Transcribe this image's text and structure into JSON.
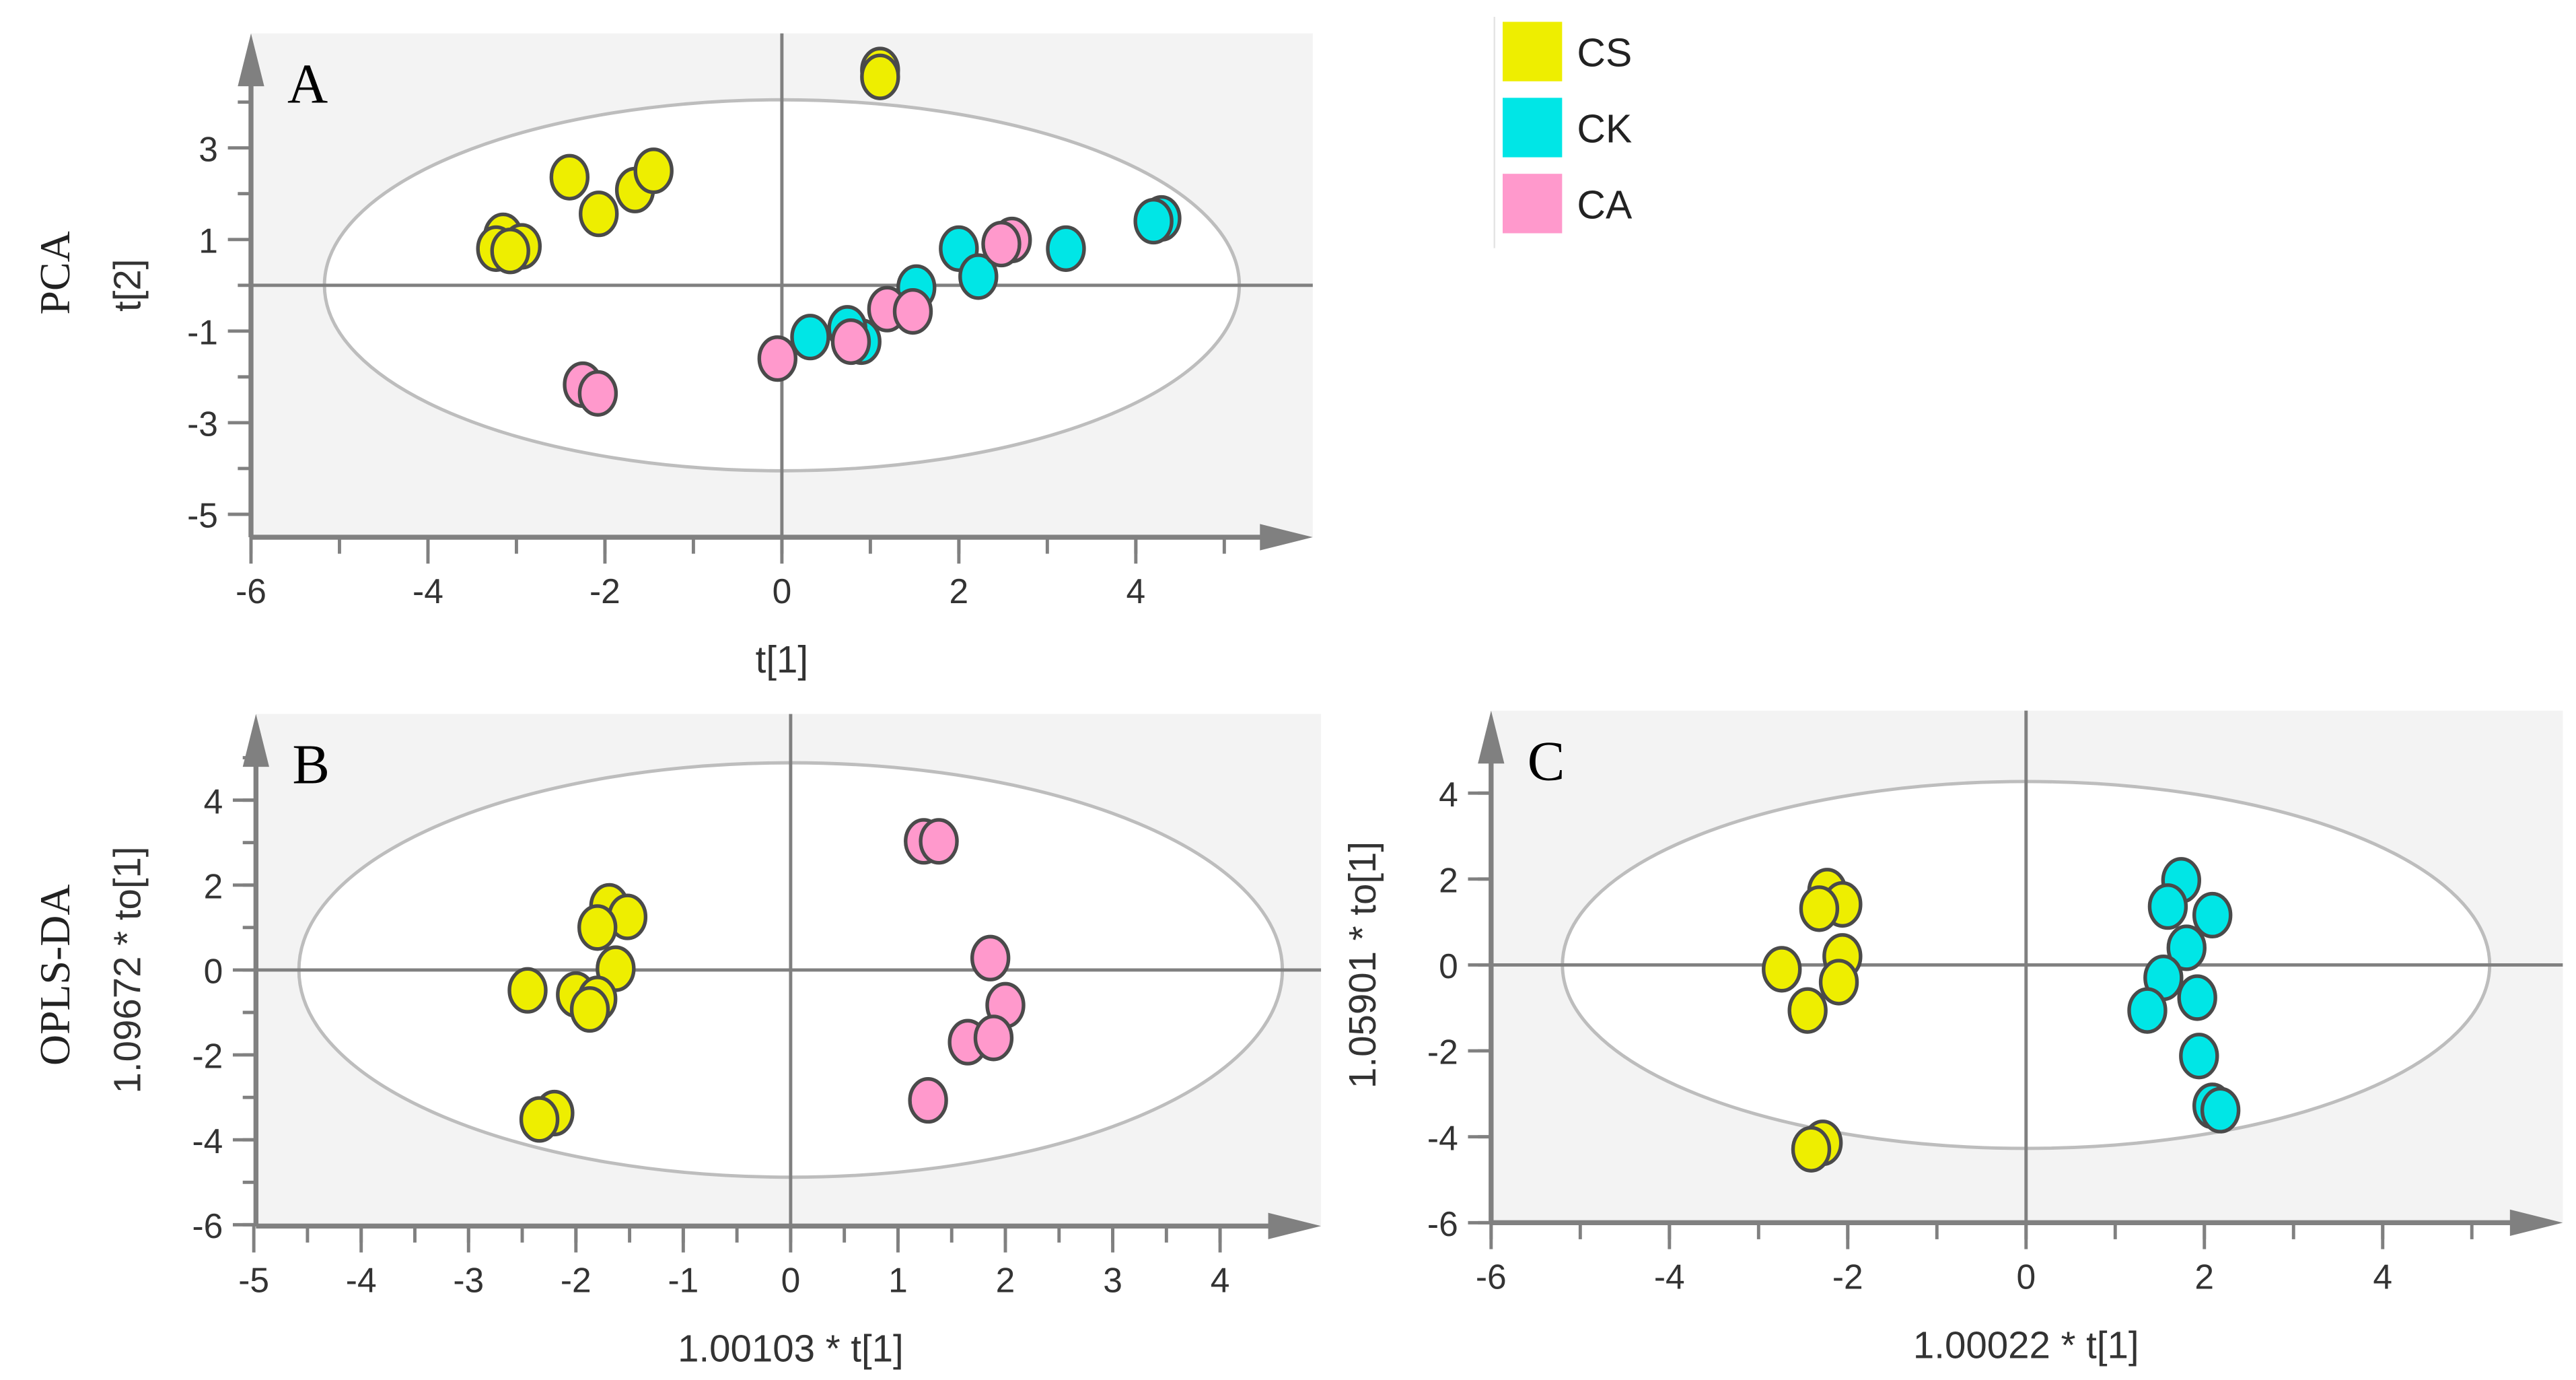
{
  "legend": [
    {
      "name": "CS",
      "color": "#eeee00"
    },
    {
      "name": "CK",
      "color": "#00e6e6"
    },
    {
      "name": "CA",
      "color": "#ff99cc"
    }
  ],
  "row_labels": {
    "pca": "PCA",
    "oplsda": "OPLS-DA"
  },
  "chart_data": [
    {
      "type": "scatter",
      "title": "A",
      "xlabel": "t[1]",
      "ylabel": "t[2]",
      "xlim": [
        -6,
        6
      ],
      "ylim": [
        -5.5,
        5.5
      ],
      "xticks": [
        "-6",
        "-4",
        "-2",
        "0",
        "2",
        "4"
      ],
      "yticks": [
        "3",
        "1",
        "-1",
        "-3",
        "-5"
      ],
      "xminor_step": 1,
      "yminor_step": 2,
      "ellipse": {
        "rx": 5.17,
        "ry": 4.05
      },
      "series": [
        {
          "name": "CS",
          "color": "#eeee00",
          "points": [
            [
              1.11,
              4.7
            ],
            [
              1.11,
              4.55
            ],
            [
              -2.4,
              2.36
            ],
            [
              -2.07,
              1.56
            ],
            [
              -1.66,
              2.08
            ],
            [
              -1.45,
              2.5
            ],
            [
              -3.15,
              1.08
            ],
            [
              -3.23,
              0.8
            ],
            [
              -2.94,
              0.85
            ],
            [
              -3.07,
              0.75
            ]
          ]
        },
        {
          "name": "CK",
          "color": "#00e6e6",
          "points": [
            [
              4.29,
              1.46
            ],
            [
              4.2,
              1.4
            ],
            [
              3.21,
              0.8
            ],
            [
              2.0,
              0.8
            ],
            [
              2.22,
              0.19
            ],
            [
              1.52,
              -0.05
            ],
            [
              0.32,
              -1.13
            ],
            [
              0.9,
              -1.23
            ],
            [
              0.74,
              -0.94
            ]
          ]
        },
        {
          "name": "CA",
          "color": "#ff99cc",
          "points": [
            [
              2.6,
              0.99
            ],
            [
              2.48,
              0.9
            ],
            [
              1.19,
              -0.52
            ],
            [
              1.48,
              -0.57
            ],
            [
              0.78,
              -1.23
            ],
            [
              -0.05,
              -1.6
            ],
            [
              -2.25,
              -2.17
            ],
            [
              -2.08,
              -2.36
            ]
          ]
        }
      ]
    },
    {
      "type": "scatter",
      "title": "B",
      "xlabel": "1.00103 * t[1]",
      "ylabel": "1.09672 * to[1]",
      "xlim": [
        -4.98,
        4.94
      ],
      "ylim": [
        -6.03,
        6.03
      ],
      "xticks": [
        "-5",
        "-4",
        "-3",
        "-2",
        "-1",
        "0",
        "1",
        "2",
        "3",
        "4"
      ],
      "yticks": [
        "4",
        "2",
        "0",
        "-2",
        "-4",
        "-6"
      ],
      "xminor_step": 0.5,
      "yminor_step": 1,
      "ellipse": {
        "rx": 4.58,
        "ry": 4.88
      },
      "series": [
        {
          "name": "CS",
          "color": "#eeee00",
          "points": [
            [
              -1.69,
              1.5
            ],
            [
              -1.52,
              1.25
            ],
            [
              -1.8,
              1.0
            ],
            [
              -1.63,
              0.03
            ],
            [
              -2.45,
              -0.48
            ],
            [
              -2.0,
              -0.58
            ],
            [
              -1.8,
              -0.68
            ],
            [
              -1.87,
              -0.93
            ],
            [
              -2.2,
              -3.37
            ],
            [
              -2.34,
              -3.52
            ]
          ]
        },
        {
          "name": "CA",
          "color": "#ff99cc",
          "points": [
            [
              1.24,
              3.03
            ],
            [
              1.38,
              3.03
            ],
            [
              1.86,
              0.28
            ],
            [
              2.0,
              -0.83
            ],
            [
              1.65,
              -1.7
            ],
            [
              1.89,
              -1.6
            ],
            [
              1.28,
              -3.07
            ]
          ]
        }
      ]
    },
    {
      "type": "scatter",
      "title": "C",
      "xlabel": "1.00022 * t[1]",
      "ylabel": "1.05901 * to[1]",
      "xlim": [
        -6,
        6.02
      ],
      "ylim": [
        -6,
        5.92
      ],
      "xticks": [
        "-6",
        "-4",
        "-2",
        "0",
        "2",
        "4"
      ],
      "yticks": [
        "4",
        "2",
        "0",
        "-2",
        "-4",
        "-6"
      ],
      "xminor_step": 1,
      "yminor_step": 2,
      "ellipse": {
        "rx": 5.2,
        "ry": 4.27
      },
      "series": [
        {
          "name": "CS",
          "color": "#eeee00",
          "points": [
            [
              -2.23,
              1.72
            ],
            [
              -2.06,
              1.41
            ],
            [
              -2.32,
              1.31
            ],
            [
              -2.06,
              0.2
            ],
            [
              -2.74,
              -0.1
            ],
            [
              -2.1,
              -0.4
            ],
            [
              -2.45,
              -1.06
            ],
            [
              -2.28,
              -4.14
            ],
            [
              -2.41,
              -4.29
            ]
          ]
        },
        {
          "name": "CK",
          "color": "#00e6e6",
          "points": [
            [
              1.74,
              1.97
            ],
            [
              1.59,
              1.36
            ],
            [
              2.09,
              1.16
            ],
            [
              1.8,
              0.4
            ],
            [
              1.54,
              -0.3
            ],
            [
              1.92,
              -0.76
            ],
            [
              1.36,
              -1.06
            ],
            [
              1.94,
              -2.12
            ],
            [
              2.09,
              -3.28
            ],
            [
              2.18,
              -3.38
            ]
          ]
        }
      ]
    }
  ]
}
